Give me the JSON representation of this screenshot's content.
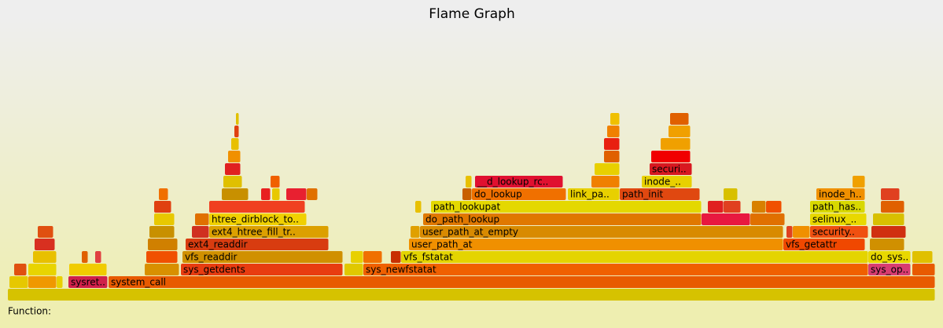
{
  "chart_data": {
    "type": "flame",
    "title": "Flame Graph",
    "details_label": "Function:",
    "xlim": [
      0,
      1179
    ],
    "frames": [
      {
        "name": null,
        "depth": 0,
        "start": 0,
        "width": 1179,
        "color": "#d6c200"
      },
      {
        "name": null,
        "depth": 1,
        "start": 2,
        "width": 24,
        "color": "#e6c800"
      },
      {
        "name": null,
        "depth": 1,
        "start": 26,
        "width": 36,
        "color": "#f09800"
      },
      {
        "name": null,
        "depth": 1,
        "start": 62,
        "width": 8,
        "color": "#e8d000"
      },
      {
        "name": "sysret..",
        "depth": 1,
        "start": 77,
        "width": 50,
        "color": "#d0204a"
      },
      {
        "name": "system_call",
        "depth": 1,
        "start": 128,
        "width": 1051,
        "color": "#e85a00"
      },
      {
        "name": null,
        "depth": 2,
        "start": 8,
        "width": 16,
        "color": "#e05010"
      },
      {
        "name": null,
        "depth": 2,
        "start": 26,
        "width": 36,
        "color": "#e8d400"
      },
      {
        "name": null,
        "depth": 2,
        "start": 78,
        "width": 48,
        "color": "#f0cc00"
      },
      {
        "name": null,
        "depth": 2,
        "start": 174,
        "width": 44,
        "color": "#d89000"
      },
      {
        "name": "sys_getdents",
        "depth": 2,
        "start": 220,
        "width": 206,
        "color": "#e83c10"
      },
      {
        "name": null,
        "depth": 2,
        "start": 428,
        "width": 24,
        "color": "#e0c800"
      },
      {
        "name": "sys_newfstatat",
        "depth": 2,
        "start": 452,
        "width": 642,
        "color": "#f06000"
      },
      {
        "name": "sys_op..",
        "depth": 2,
        "start": 1094,
        "width": 54,
        "color": "#d83c70"
      },
      {
        "name": null,
        "depth": 2,
        "start": 1150,
        "width": 29,
        "color": "#e85a00"
      },
      {
        "name": null,
        "depth": 3,
        "start": 32,
        "width": 30,
        "color": "#e8c000"
      },
      {
        "name": null,
        "depth": 3,
        "start": 94,
        "width": 8,
        "color": "#e06000"
      },
      {
        "name": null,
        "depth": 3,
        "start": 111,
        "width": 8,
        "color": "#e04040"
      },
      {
        "name": null,
        "depth": 3,
        "start": 176,
        "width": 40,
        "color": "#f05000"
      },
      {
        "name": "vfs_readdir",
        "depth": 3,
        "start": 222,
        "width": 204,
        "color": "#d09000"
      },
      {
        "name": null,
        "depth": 3,
        "start": 436,
        "width": 16,
        "color": "#e8d000"
      },
      {
        "name": null,
        "depth": 3,
        "start": 452,
        "width": 24,
        "color": "#f07000"
      },
      {
        "name": null,
        "depth": 3,
        "start": 487,
        "width": 13,
        "color": "#c83000"
      },
      {
        "name": "vfs_fstatat",
        "depth": 3,
        "start": 500,
        "width": 594,
        "color": "#e4d400"
      },
      {
        "name": "do_sys..",
        "depth": 3,
        "start": 1094,
        "width": 54,
        "color": "#e8d800"
      },
      {
        "name": null,
        "depth": 3,
        "start": 1150,
        "width": 26,
        "color": "#e0c000"
      },
      {
        "name": null,
        "depth": 4,
        "start": 34,
        "width": 26,
        "color": "#d83020"
      },
      {
        "name": null,
        "depth": 4,
        "start": 178,
        "width": 38,
        "color": "#d08000"
      },
      {
        "name": "ext4_readdir",
        "depth": 4,
        "start": 226,
        "width": 182,
        "color": "#d83c10"
      },
      {
        "name": "user_path_at",
        "depth": 4,
        "start": 510,
        "width": 476,
        "color": "#f09000"
      },
      {
        "name": "vfs_getattr",
        "depth": 4,
        "start": 986,
        "width": 104,
        "color": "#f04800"
      },
      {
        "name": null,
        "depth": 4,
        "start": 1096,
        "width": 44,
        "color": "#d09000"
      },
      {
        "name": null,
        "depth": 5,
        "start": 38,
        "width": 20,
        "color": "#e05010"
      },
      {
        "name": null,
        "depth": 5,
        "start": 180,
        "width": 32,
        "color": "#c89000"
      },
      {
        "name": null,
        "depth": 5,
        "start": 234,
        "width": 22,
        "color": "#d03020"
      },
      {
        "name": "ext4_htree_fill_tr..",
        "depth": 5,
        "start": 256,
        "width": 152,
        "color": "#dca000"
      },
      {
        "name": null,
        "depth": 5,
        "start": 512,
        "width": 12,
        "color": "#e0a000"
      },
      {
        "name": "user_path_at_empty",
        "depth": 5,
        "start": 524,
        "width": 462,
        "color": "#d88a00"
      },
      {
        "name": null,
        "depth": 5,
        "start": 990,
        "width": 8,
        "color": "#e04020"
      },
      {
        "name": null,
        "depth": 5,
        "start": 998,
        "width": 22,
        "color": "#f09000"
      },
      {
        "name": "security..",
        "depth": 5,
        "start": 1020,
        "width": 74,
        "color": "#f05010"
      },
      {
        "name": null,
        "depth": 5,
        "start": 1098,
        "width": 44,
        "color": "#d03010"
      },
      {
        "name": null,
        "depth": 6,
        "start": 186,
        "width": 26,
        "color": "#e8c800"
      },
      {
        "name": null,
        "depth": 6,
        "start": 238,
        "width": 18,
        "color": "#e07000"
      },
      {
        "name": "htree_dirblock_to..",
        "depth": 6,
        "start": 256,
        "width": 124,
        "color": "#f0d000"
      },
      {
        "name": "do_path_lookup",
        "depth": 6,
        "start": 528,
        "width": 354,
        "color": "#e07800"
      },
      {
        "name": null,
        "depth": 6,
        "start": 882,
        "width": 62,
        "color": "#e81840"
      },
      {
        "name": null,
        "depth": 6,
        "start": 944,
        "width": 44,
        "color": "#e07000"
      },
      {
        "name": "selinux_..",
        "depth": 6,
        "start": 1020,
        "width": 72,
        "color": "#e8d800"
      },
      {
        "name": null,
        "depth": 6,
        "start": 1100,
        "width": 40,
        "color": "#d8c000"
      },
      {
        "name": null,
        "depth": 7,
        "start": 186,
        "width": 22,
        "color": "#e04010"
      },
      {
        "name": null,
        "depth": 7,
        "start": 256,
        "width": 122,
        "color": "#f04020"
      },
      {
        "name": null,
        "depth": 7,
        "start": 518,
        "width": 8,
        "color": "#e8c000"
      },
      {
        "name": "path_lookupat",
        "depth": 7,
        "start": 538,
        "width": 344,
        "color": "#e4d800"
      },
      {
        "name": null,
        "depth": 7,
        "start": 890,
        "width": 20,
        "color": "#e02020"
      },
      {
        "name": null,
        "depth": 7,
        "start": 910,
        "width": 22,
        "color": "#e04020"
      },
      {
        "name": null,
        "depth": 7,
        "start": 946,
        "width": 18,
        "color": "#d88000"
      },
      {
        "name": null,
        "depth": 7,
        "start": 964,
        "width": 20,
        "color": "#f05000"
      },
      {
        "name": "path_has..",
        "depth": 7,
        "start": 1020,
        "width": 70,
        "color": "#d8d800"
      },
      {
        "name": null,
        "depth": 7,
        "start": 1110,
        "width": 30,
        "color": "#e06000"
      },
      {
        "name": null,
        "depth": 8,
        "start": 192,
        "width": 12,
        "color": "#f07000"
      },
      {
        "name": null,
        "depth": 8,
        "start": 272,
        "width": 34,
        "color": "#c89000"
      },
      {
        "name": null,
        "depth": 8,
        "start": 322,
        "width": 12,
        "color": "#e82020"
      },
      {
        "name": null,
        "depth": 8,
        "start": 336,
        "width": 10,
        "color": "#e8c800"
      },
      {
        "name": null,
        "depth": 8,
        "start": 354,
        "width": 26,
        "color": "#e82030"
      },
      {
        "name": null,
        "depth": 8,
        "start": 380,
        "width": 14,
        "color": "#e07000"
      },
      {
        "name": null,
        "depth": 8,
        "start": 578,
        "width": 12,
        "color": "#c86000"
      },
      {
        "name": "do_lookup",
        "depth": 8,
        "start": 590,
        "width": 120,
        "color": "#f07000"
      },
      {
        "name": "link_pa..",
        "depth": 8,
        "start": 712,
        "width": 66,
        "color": "#e8d000"
      },
      {
        "name": "path_init",
        "depth": 8,
        "start": 778,
        "width": 102,
        "color": "#e04810"
      },
      {
        "name": null,
        "depth": 8,
        "start": 910,
        "width": 18,
        "color": "#d8c000"
      },
      {
        "name": "inode_h..",
        "depth": 8,
        "start": 1028,
        "width": 62,
        "color": "#f09000"
      },
      {
        "name": null,
        "depth": 8,
        "start": 1110,
        "width": 24,
        "color": "#e04020"
      },
      {
        "name": null,
        "depth": 9,
        "start": 274,
        "width": 24,
        "color": "#e0c000"
      },
      {
        "name": null,
        "depth": 9,
        "start": 334,
        "width": 12,
        "color": "#f06000"
      },
      {
        "name": null,
        "depth": 9,
        "start": 582,
        "width": 8,
        "color": "#e8c000"
      },
      {
        "name": "__d_lookup_rc..",
        "depth": 9,
        "start": 594,
        "width": 112,
        "color": "#e01030"
      },
      {
        "name": null,
        "depth": 9,
        "start": 742,
        "width": 36,
        "color": "#f08000"
      },
      {
        "name": "inode_..",
        "depth": 9,
        "start": 806,
        "width": 64,
        "color": "#e8d000"
      },
      {
        "name": null,
        "depth": 9,
        "start": 1074,
        "width": 16,
        "color": "#f0a000"
      },
      {
        "name": null,
        "depth": 10,
        "start": 276,
        "width": 20,
        "color": "#e02020"
      },
      {
        "name": null,
        "depth": 10,
        "start": 746,
        "width": 32,
        "color": "#e8d000"
      },
      {
        "name": "securi..",
        "depth": 10,
        "start": 816,
        "width": 54,
        "color": "#d81820"
      },
      {
        "name": null,
        "depth": 11,
        "start": 280,
        "width": 16,
        "color": "#f09000"
      },
      {
        "name": null,
        "depth": 11,
        "start": 758,
        "width": 20,
        "color": "#e06000"
      },
      {
        "name": null,
        "depth": 11,
        "start": 818,
        "width": 50,
        "color": "#f00000"
      },
      {
        "name": null,
        "depth": 12,
        "start": 284,
        "width": 10,
        "color": "#e8c000"
      },
      {
        "name": null,
        "depth": 12,
        "start": 758,
        "width": 20,
        "color": "#e82010"
      },
      {
        "name": null,
        "depth": 12,
        "start": 830,
        "width": 38,
        "color": "#f0a000"
      },
      {
        "name": null,
        "depth": 13,
        "start": 288,
        "width": 6,
        "color": "#e04010"
      },
      {
        "name": null,
        "depth": 13,
        "start": 762,
        "width": 16,
        "color": "#f08000"
      },
      {
        "name": null,
        "depth": 13,
        "start": 840,
        "width": 28,
        "color": "#f0a000"
      },
      {
        "name": null,
        "depth": 14,
        "start": 290,
        "width": 4,
        "color": "#e0c000"
      },
      {
        "name": null,
        "depth": 14,
        "start": 766,
        "width": 12,
        "color": "#f0c000"
      },
      {
        "name": null,
        "depth": 14,
        "start": 842,
        "width": 24,
        "color": "#e06000"
      }
    ]
  }
}
